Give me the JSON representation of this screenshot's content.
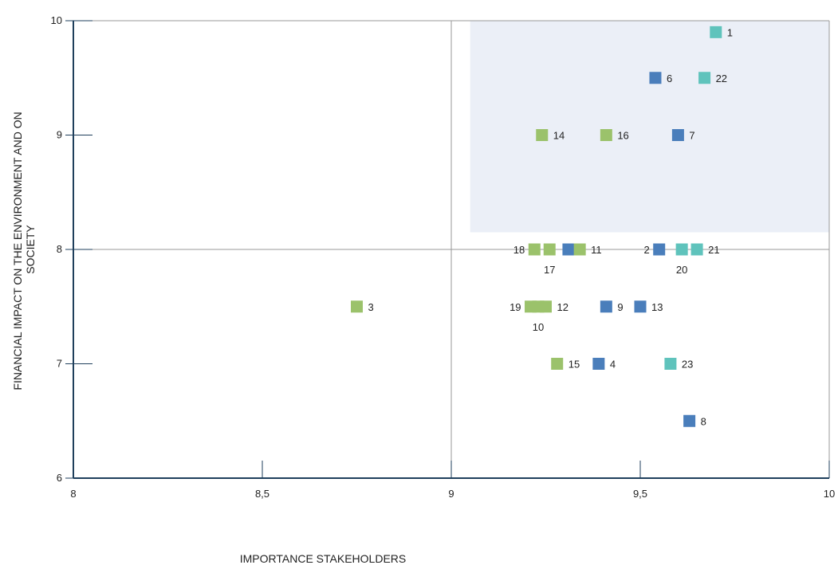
{
  "chart_data": {
    "type": "scatter",
    "title": "",
    "xlabel": "IMPORTANCE STAKEHOLDERS",
    "ylabel_lines": [
      "FINANCIAL IMPACT ON THE ENVIRONMENT AND ON",
      "SOCIETY"
    ],
    "xlim": [
      8,
      10
    ],
    "ylim": [
      6,
      10
    ],
    "x_ticks": [
      {
        "value": 8,
        "label": "8"
      },
      {
        "value": 8.5,
        "label": "8,5"
      },
      {
        "value": 9,
        "label": "9"
      },
      {
        "value": 9.5,
        "label": "9,5"
      },
      {
        "value": 10,
        "label": "10"
      }
    ],
    "y_ticks": [
      {
        "value": 6,
        "label": "6"
      },
      {
        "value": 7,
        "label": "7"
      },
      {
        "value": 8,
        "label": "8"
      },
      {
        "value": 9,
        "label": "9"
      },
      {
        "value": 10,
        "label": "10"
      }
    ],
    "divider_lines": {
      "x": 9,
      "y": 8
    },
    "highlight_region": {
      "x": [
        9.05,
        10
      ],
      "y": [
        8.15,
        10
      ],
      "color": "#ebeff7"
    },
    "colors": {
      "blue": "#4a7ebb",
      "green": "#9bc26b",
      "teal": "#5fc3bc",
      "axis": "#1f3f5c",
      "divider": "#999999"
    },
    "points": [
      {
        "label": "1",
        "x": 9.7,
        "y": 9.9,
        "color": "teal",
        "label_pos": "right"
      },
      {
        "label": "6",
        "x": 9.54,
        "y": 9.5,
        "color": "blue",
        "label_pos": "right"
      },
      {
        "label": "22",
        "x": 9.67,
        "y": 9.5,
        "color": "teal",
        "label_pos": "right"
      },
      {
        "label": "14",
        "x": 9.24,
        "y": 9.0,
        "color": "green",
        "label_pos": "right"
      },
      {
        "label": "16",
        "x": 9.41,
        "y": 9.0,
        "color": "green",
        "label_pos": "right"
      },
      {
        "label": "7",
        "x": 9.6,
        "y": 9.0,
        "color": "blue",
        "label_pos": "right"
      },
      {
        "label": "18",
        "x": 9.22,
        "y": 8.0,
        "color": "green",
        "label_pos": "left"
      },
      {
        "label": "17",
        "x": 9.26,
        "y": 8.0,
        "color": "green",
        "label_pos": "below"
      },
      {
        "label": "",
        "x": 9.31,
        "y": 8.0,
        "color": "blue",
        "label_pos": "none"
      },
      {
        "label": "11",
        "x": 9.34,
        "y": 8.0,
        "color": "green",
        "label_pos": "right"
      },
      {
        "label": "2",
        "x": 9.55,
        "y": 8.0,
        "color": "blue",
        "label_pos": "left"
      },
      {
        "label": "20",
        "x": 9.61,
        "y": 8.0,
        "color": "teal",
        "label_pos": "below"
      },
      {
        "label": "21",
        "x": 9.65,
        "y": 8.0,
        "color": "teal",
        "label_pos": "right"
      },
      {
        "label": "3",
        "x": 8.75,
        "y": 7.5,
        "color": "green",
        "label_pos": "right"
      },
      {
        "label": "19",
        "x": 9.21,
        "y": 7.5,
        "color": "green",
        "label_pos": "left"
      },
      {
        "label": "10",
        "x": 9.23,
        "y": 7.5,
        "color": "green",
        "label_pos": "below"
      },
      {
        "label": "12",
        "x": 9.25,
        "y": 7.5,
        "color": "green",
        "label_pos": "right"
      },
      {
        "label": "9",
        "x": 9.41,
        "y": 7.5,
        "color": "blue",
        "label_pos": "right"
      },
      {
        "label": "13",
        "x": 9.5,
        "y": 7.5,
        "color": "blue",
        "label_pos": "right"
      },
      {
        "label": "15",
        "x": 9.28,
        "y": 7.0,
        "color": "green",
        "label_pos": "right"
      },
      {
        "label": "4",
        "x": 9.39,
        "y": 7.0,
        "color": "blue",
        "label_pos": "right"
      },
      {
        "label": "23",
        "x": 9.58,
        "y": 7.0,
        "color": "teal",
        "label_pos": "right"
      },
      {
        "label": "8",
        "x": 9.63,
        "y": 6.5,
        "color": "blue",
        "label_pos": "right"
      }
    ]
  }
}
